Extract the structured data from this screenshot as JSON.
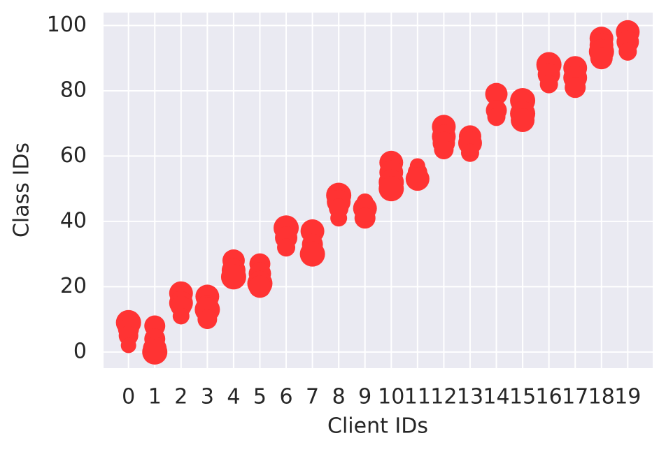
{
  "chart_data": {
    "type": "scatter",
    "x_label": "Client IDs",
    "y_label": "Class IDs",
    "x": [
      0,
      0,
      0,
      0,
      1,
      1,
      1,
      1,
      2,
      2,
      2,
      2,
      3,
      3,
      3,
      3,
      4,
      4,
      4,
      5,
      5,
      5,
      5,
      6,
      6,
      6,
      7,
      7,
      7,
      8,
      8,
      8,
      8,
      9,
      9,
      9,
      10,
      10,
      10,
      10,
      11,
      11,
      11,
      12,
      12,
      12,
      12,
      13,
      13,
      13,
      14,
      14,
      14,
      15,
      15,
      15,
      16,
      16,
      16,
      17,
      17,
      17,
      18,
      18,
      18,
      18,
      19,
      19,
      19
    ],
    "values": [
      9,
      7,
      5,
      2,
      8,
      4,
      1,
      0,
      18,
      15,
      14,
      11,
      17,
      14,
      13,
      10,
      28,
      25,
      23,
      27,
      24,
      21,
      20,
      38,
      35,
      32,
      37,
      33,
      30,
      48,
      46,
      44,
      41,
      46,
      44,
      41,
      58,
      55,
      52,
      50,
      57,
      55,
      53,
      69,
      66,
      64,
      62,
      66,
      64,
      61,
      79,
      74,
      72,
      77,
      73,
      71,
      88,
      85,
      82,
      87,
      84,
      81,
      96,
      94,
      92,
      90,
      98,
      95,
      92
    ],
    "sizes": [
      18,
      15,
      14,
      11,
      15,
      15,
      17,
      18,
      17,
      17,
      15,
      12,
      17,
      16,
      18,
      14,
      16,
      17,
      18,
      15,
      16,
      18,
      16,
      18,
      16,
      13,
      17,
      15,
      18,
      18,
      17,
      14,
      12,
      12,
      17,
      15,
      17,
      17,
      18,
      18,
      11,
      14,
      17,
      17,
      17,
      16,
      14,
      16,
      17,
      13,
      16,
      15,
      13,
      18,
      18,
      17,
      18,
      16,
      13,
      17,
      17,
      15,
      17,
      17,
      18,
      16,
      17,
      16,
      13
    ],
    "color": "#ff3333",
    "xlim": [
      -0.95,
      19.95
    ],
    "xticks": [
      0,
      1,
      2,
      3,
      4,
      5,
      6,
      7,
      8,
      9,
      10,
      11,
      12,
      13,
      14,
      15,
      16,
      17,
      18,
      19
    ],
    "ylim": [
      -4.95,
      103.95
    ],
    "yticks": [
      0,
      20,
      40,
      60,
      80,
      100
    ],
    "grid": true
  }
}
